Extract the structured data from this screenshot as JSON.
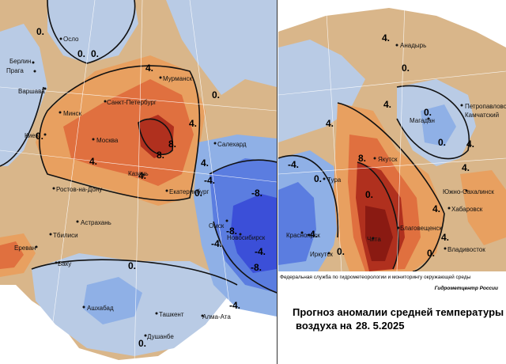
{
  "colors": {
    "very_cold": "#3b4fd8",
    "cold": "#5b7de0",
    "cool": "#8fb0e6",
    "slightly_cool": "#b9cbe5",
    "near_normal": "#d9b68a",
    "warm": "#e8a060",
    "hot": "#e0703f",
    "very_hot": "#b0301e",
    "extreme": "#8a1a12",
    "sea": "#ffffff"
  },
  "left_map": {
    "cities": [
      "Осло",
      "Берлин",
      "Прага",
      "Варшава",
      "Минск",
      "Киев",
      "Санкт-Петербург",
      "Мурманск",
      "Москва",
      "Казань",
      "Ростов-на-Дону",
      "Екатеринбург",
      "Салехард",
      "Астрахань",
      "Тбилиси",
      "Ереван",
      "Баку",
      "Омск",
      "Новосибирск",
      "Ашхабад",
      "Ташкент",
      "Алма-Ата",
      "Душанбе"
    ],
    "isoline_labels": [
      "0.",
      "0.",
      "0.",
      "4.",
      "0.",
      "0.",
      "8.",
      "4.",
      "8.",
      "4.",
      "4.",
      "0.",
      "4.",
      "-4.",
      "-8.",
      "0.",
      "-8.",
      "-4.",
      "-4.",
      "-8.",
      "-4.",
      "0."
    ]
  },
  "right_map": {
    "cities": [
      "Анадырь",
      "Петропавловск",
      "Камчатский",
      "Магадан",
      "Якутск",
      "Тура",
      "Южно-Сахалинск",
      "Хабаровск",
      "Благовещенск",
      "Красноярск",
      "Иркутск",
      "Чита",
      "Владивосток"
    ],
    "isoline_labels": [
      "4.",
      "0.",
      "4.",
      "0.",
      "0.",
      "4.",
      "4.",
      "8.",
      "-4.",
      "0.",
      "0.",
      "4.",
      "4.",
      "4.",
      "0.",
      "-4.",
      "0."
    ]
  },
  "credits": {
    "agency": "Федеральная служба по гидрометеорологии и мониторингу окружающей среды",
    "center": "Гидрометцентр России"
  },
  "caption": {
    "title": "Прогноз аномалии средней температуры",
    "date_label": "воздуха на",
    "date": "28. 5.2025"
  }
}
